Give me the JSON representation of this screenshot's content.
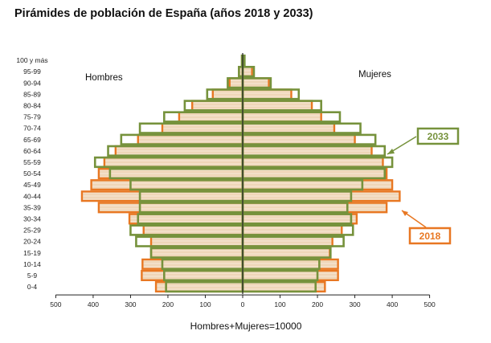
{
  "title": "Pirámides de población de España (años 2018 y 2033)",
  "chart_data": {
    "type": "bar",
    "orientation": "horizontal-pyramid",
    "categories": [
      "0-4",
      "5-9",
      "10-14",
      "15-19",
      "20-24",
      "25-29",
      "30-34",
      "35-39",
      "40-44",
      "45-49",
      "50-54",
      "55-59",
      "60-64",
      "65-69",
      "70-74",
      "75-79",
      "80-84",
      "85-89",
      "90-94",
      "95-99",
      "100 y más"
    ],
    "left_label": "Hombres",
    "right_label": "Mujeres",
    "xlabel": "Hombres+Mujeres=10000",
    "xlim": [
      -500,
      500
    ],
    "xticks": [
      -500,
      -400,
      -300,
      -200,
      -100,
      0,
      100,
      200,
      300,
      400,
      500
    ],
    "xtick_labels": [
      "500",
      "400",
      "300",
      "200",
      "100",
      "0",
      "100",
      "200",
      "300",
      "400",
      "500"
    ],
    "series": [
      {
        "name": "2018",
        "color": "#E87722",
        "hombres": [
          232,
          270,
          268,
          245,
          245,
          265,
          303,
          385,
          430,
          405,
          385,
          370,
          340,
          280,
          215,
          170,
          135,
          80,
          35,
          10,
          2
        ],
        "mujeres": [
          220,
          255,
          255,
          233,
          240,
          265,
          305,
          385,
          420,
          400,
          385,
          375,
          345,
          300,
          245,
          210,
          185,
          130,
          70,
          25,
          4
        ]
      },
      {
        "name": "2033",
        "color": "#76923C",
        "hombres": [
          205,
          210,
          215,
          245,
          285,
          300,
          280,
          275,
          275,
          300,
          355,
          395,
          360,
          325,
          275,
          210,
          155,
          95,
          40,
          10,
          2
        ],
        "mujeres": [
          195,
          200,
          205,
          235,
          270,
          295,
          290,
          280,
          290,
          320,
          380,
          400,
          380,
          355,
          315,
          260,
          210,
          150,
          75,
          30,
          5
        ]
      }
    ],
    "legend": [
      "2033",
      "2018"
    ],
    "legend_placement": "right, with arrows"
  }
}
